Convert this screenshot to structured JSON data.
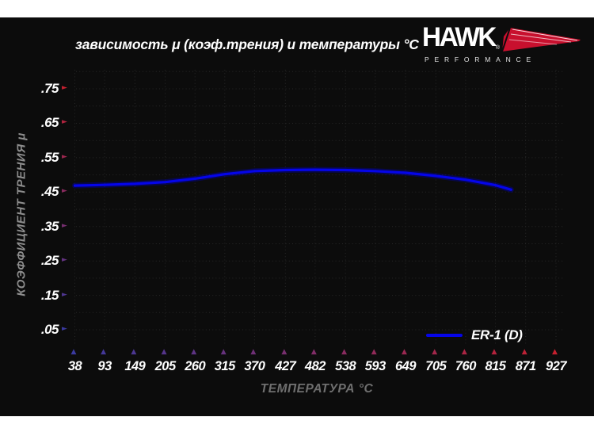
{
  "title": "зависимость μ (коэф.трения) и температуры °C",
  "logo": {
    "brand": "HAWK",
    "registered": "®",
    "subtitle": "PERFORMANCE"
  },
  "legend": {
    "label": "ER-1 (D)"
  },
  "colors": {
    "panel_bg": "#0c0c0c",
    "page_bg": "#ffffff",
    "axis_red": "#c6202f",
    "axis_blue": "#3b3aa0",
    "curve": "#0505e8",
    "curve_glow": "#0000c4",
    "grid": "#272727",
    "tick_text": "#ffffff",
    "ylabel_gray": "#8d8d8d",
    "xlabel_gray": "#6f6f6f",
    "logo_red": "#c8102e"
  },
  "chart_data": {
    "type": "line",
    "title": "зависимость μ (коэф.трения) и температуры °C",
    "xlabel": "ТЕМПЕРАТУРА °C",
    "ylabel": "КОЭФФИЦИЕНТ ТРЕНИЯ μ",
    "x_ticks": [
      38,
      93,
      149,
      205,
      260,
      315,
      370,
      427,
      482,
      538,
      593,
      649,
      705,
      760,
      815,
      871,
      927
    ],
    "y_ticks": [
      {
        "label": ".05",
        "value": 0.05
      },
      {
        "label": ".15",
        "value": 0.15
      },
      {
        "label": ".25",
        "value": 0.25
      },
      {
        "label": ".35",
        "value": 0.35
      },
      {
        "label": ".45",
        "value": 0.45
      },
      {
        "label": ".55",
        "value": 0.55
      },
      {
        "label": ".65",
        "value": 0.65
      },
      {
        "label": ".75",
        "value": 0.75
      }
    ],
    "xlim": [
      38,
      940
    ],
    "ylim": [
      0,
      0.8
    ],
    "grid": "dotted",
    "grid_step_y": 0.05,
    "legend_position": "lower right",
    "series": [
      {
        "name": "ER-1 (D)",
        "color": "#0505e8",
        "points": [
          [
            38,
            0.469
          ],
          [
            93,
            0.471
          ],
          [
            149,
            0.474
          ],
          [
            205,
            0.479
          ],
          [
            260,
            0.489
          ],
          [
            315,
            0.502
          ],
          [
            370,
            0.511
          ],
          [
            427,
            0.514
          ],
          [
            482,
            0.515
          ],
          [
            538,
            0.514
          ],
          [
            593,
            0.511
          ],
          [
            649,
            0.506
          ],
          [
            705,
            0.497
          ],
          [
            760,
            0.486
          ],
          [
            815,
            0.47
          ],
          [
            844,
            0.457
          ]
        ]
      }
    ]
  }
}
